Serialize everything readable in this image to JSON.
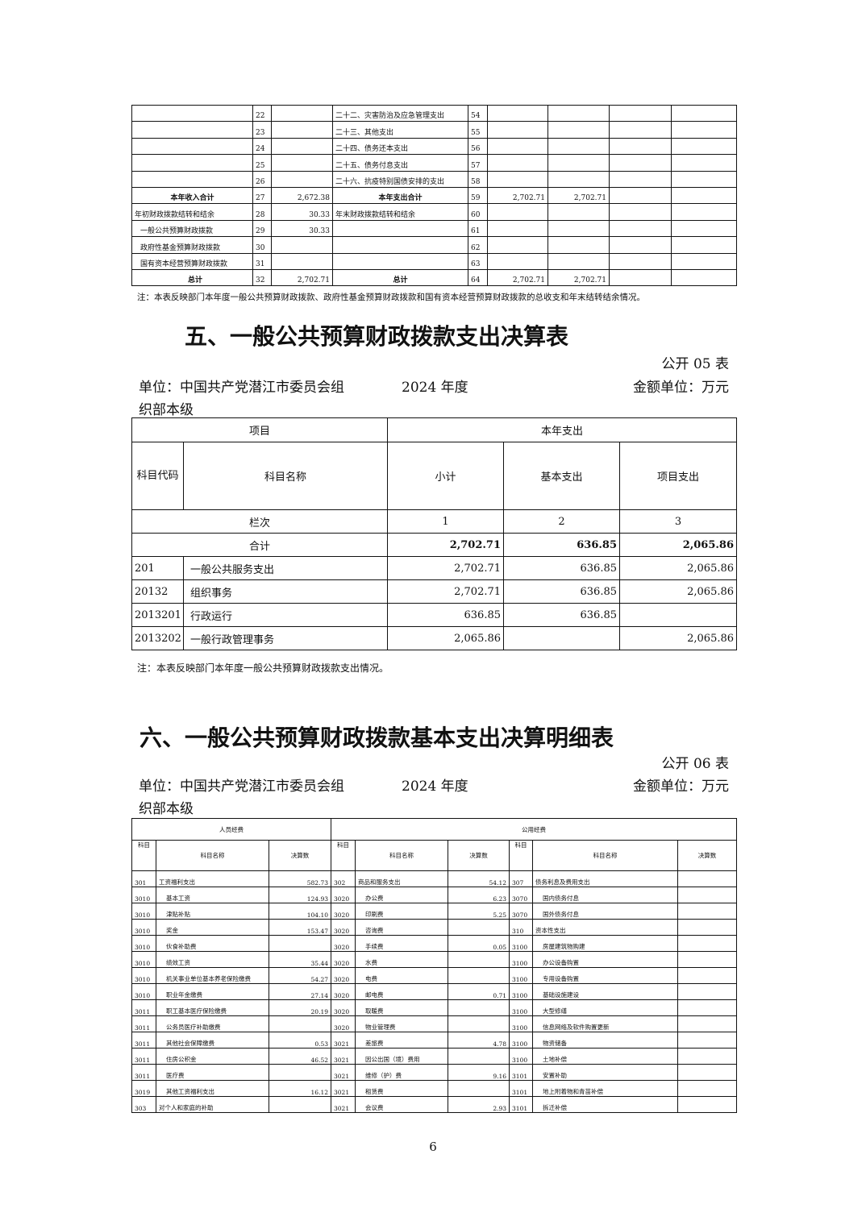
{
  "table4_tail": {
    "rows": [
      [
        "",
        "22",
        "",
        "二十二、灾害防治及应急管理支出",
        "54",
        "",
        "",
        "",
        ""
      ],
      [
        "",
        "23",
        "",
        "二十三、其他支出",
        "55",
        "",
        "",
        "",
        ""
      ],
      [
        "",
        "24",
        "",
        "二十四、债务还本支出",
        "56",
        "",
        "",
        "",
        ""
      ],
      [
        "",
        "25",
        "",
        "二十五、债务付息支出",
        "57",
        "",
        "",
        "",
        ""
      ],
      [
        "",
        "26",
        "",
        "二十六、抗疫特别国债安排的支出",
        "58",
        "",
        "",
        "",
        ""
      ],
      [
        "本年收入合计",
        "27",
        "2,672.38",
        "本年支出合计",
        "59",
        "2,702.71",
        "2,702.71",
        "",
        ""
      ],
      [
        "年初财政拨款结转和结余",
        "28",
        "30.33",
        "年末财政拨款结转和结余",
        "60",
        "",
        "",
        "",
        ""
      ],
      [
        "一般公共预算财政拨款",
        "29",
        "30.33",
        "",
        "61",
        "",
        "",
        "",
        ""
      ],
      [
        "政府性基金预算财政拨款",
        "30",
        "",
        "",
        "62",
        "",
        "",
        "",
        ""
      ],
      [
        "国有资本经营预算财政拨款",
        "31",
        "",
        "",
        "63",
        "",
        "",
        "",
        ""
      ],
      [
        "总计",
        "32",
        "2,702.71",
        "总计",
        "64",
        "2,702.71",
        "2,702.71",
        "",
        ""
      ]
    ],
    "note": "注：本表反映部门本年度一般公共预算财政拨款、政府性基金预算财政拨款和国有资本经营预算财政拨款的总收支和年末结转结余情况。"
  },
  "table5": {
    "title": "五、一般公共预算财政拨款支出决算表",
    "code": "公开 05 表",
    "unit": "单位：中国共产党潜江市委员会组",
    "unit2": "织部本级",
    "year": "2024 年度",
    "money_unit": "金额单位：万元",
    "h_item": "项目",
    "h_spend": "本年支出",
    "h_code": "科目代码",
    "h_name": "科目名称",
    "h_sub": "小计",
    "h_basic": "基本支出",
    "h_proj": "项目支出",
    "lanci": "栏次",
    "col_nums": [
      "1",
      "2",
      "3"
    ],
    "total_label": "合计",
    "total": [
      "2,702.71",
      "636.85",
      "2,065.86"
    ],
    "rows": [
      [
        "201",
        "一般公共服务支出",
        "2,702.71",
        "636.85",
        "2,065.86"
      ],
      [
        "20132",
        "组织事务",
        "2,702.71",
        "636.85",
        "2,065.86"
      ],
      [
        "2013201",
        "行政运行",
        "636.85",
        "636.85",
        ""
      ],
      [
        "2013202",
        "一般行政管理事务",
        "2,065.86",
        "",
        "2,065.86"
      ]
    ],
    "note": "注：本表反映部门本年度一般公共预算财政拨款支出情况。"
  },
  "table6": {
    "title": "六、一般公共预算财政拨款基本支出决算明细表",
    "code": "公开 06 表",
    "unit": "单位：中国共产党潜江市委员会组",
    "unit2": "织部本级",
    "year": "2024 年度",
    "money_unit": "金额单位：万元",
    "h_personnel": "人员经费",
    "h_public": "公用经费",
    "h_cols": [
      "科目",
      "科目名称",
      "决算数",
      "科目",
      "科目名称",
      "决算数",
      "科目",
      "科目名称",
      "决算数"
    ],
    "rows": [
      [
        "301",
        "工资福利支出",
        "582.73",
        "302",
        "商品和服务支出",
        "54.12",
        "307",
        "债务利息及费用支出",
        ""
      ],
      [
        "3010",
        "基本工资",
        "124.93",
        "3020",
        "办公费",
        "6.23",
        "3070",
        "国内债务付息",
        ""
      ],
      [
        "3010",
        "津贴补贴",
        "104.10",
        "3020",
        "印刷费",
        "5.25",
        "3070",
        "国外债务付息",
        ""
      ],
      [
        "3010",
        "奖金",
        "153.47",
        "3020",
        "咨询费",
        "",
        "310",
        "资本性支出",
        ""
      ],
      [
        "3010",
        "伙食补助费",
        "",
        "3020",
        "手续费",
        "0.05",
        "3100",
        "房屋建筑物购建",
        ""
      ],
      [
        "3010",
        "绩效工资",
        "35.44",
        "3020",
        "水费",
        "",
        "3100",
        "办公设备购置",
        ""
      ],
      [
        "3010",
        "机关事业单位基本养老保险缴费",
        "54.27",
        "3020",
        "电费",
        "",
        "3100",
        "专用设备购置",
        ""
      ],
      [
        "3010",
        "职业年金缴费",
        "27.14",
        "3020",
        "邮电费",
        "0.71",
        "3100",
        "基础设施建设",
        ""
      ],
      [
        "3011",
        "职工基本医疗保险缴费",
        "20.19",
        "3020",
        "取暖费",
        "",
        "3100",
        "大型修缮",
        ""
      ],
      [
        "3011",
        "公务员医疗补助缴费",
        "",
        "3020",
        "物业管理费",
        "",
        "3100",
        "信息网络及软件购置更新",
        ""
      ],
      [
        "3011",
        "其他社会保障缴费",
        "0.53",
        "3021",
        "差旅费",
        "4.78",
        "3100",
        "物资储备",
        ""
      ],
      [
        "3011",
        "住房公积金",
        "46.52",
        "3021",
        "因公出国（境）费用",
        "",
        "3100",
        "土地补偿",
        ""
      ],
      [
        "3011",
        "医疗费",
        "",
        "3021",
        "维修（护）费",
        "9.16",
        "3101",
        "安置补助",
        ""
      ],
      [
        "3019",
        "其他工资福利支出",
        "16.12",
        "3021",
        "租赁费",
        "",
        "3101",
        "地上附着物和青苗补偿",
        ""
      ],
      [
        "303",
        "对个人和家庭的补助",
        "",
        "3021",
        "会议费",
        "2.93",
        "3101",
        "拆迁补偿",
        ""
      ]
    ]
  },
  "page_number": "6"
}
